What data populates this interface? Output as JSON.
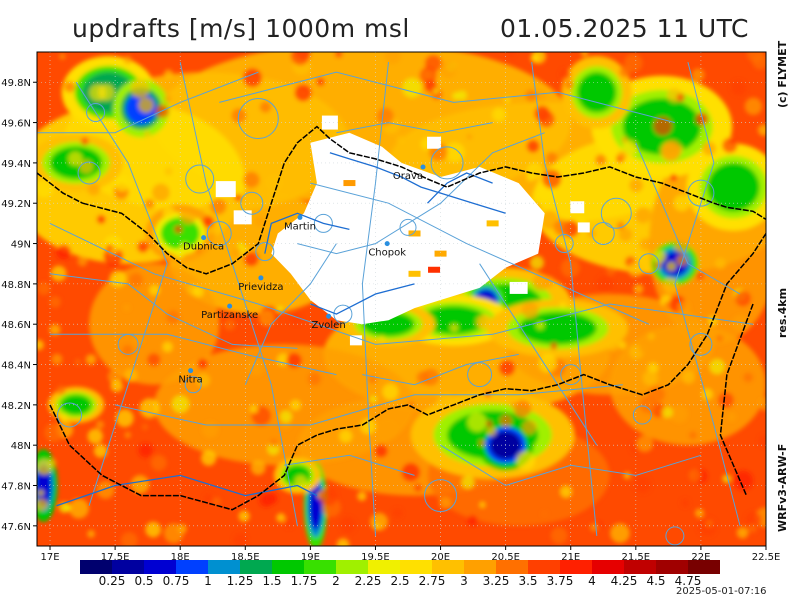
{
  "title": {
    "parameter": "updrafts [m/s] 1000m msl",
    "datetime": "01.05.2025 11 UTC"
  },
  "side_labels": {
    "copyright": "(c) FLYMET",
    "resolution": "res.4km",
    "model": "WRFv3-ARW-F"
  },
  "axes": {
    "longitude_ticks": [
      "17E",
      "17.5E",
      "18E",
      "18.5E",
      "19E",
      "19.5E",
      "20E",
      "20.5E",
      "21E",
      "21.5E",
      "22E",
      "22.5E"
    ],
    "latitude_ticks": [
      "49.8N",
      "49.6N",
      "49.4N",
      "49.2N",
      "49N",
      "48.8N",
      "48.6N",
      "48.4N",
      "48.2N",
      "48N",
      "47.8N",
      "47.6N"
    ],
    "lon_range": [
      16.9,
      22.5
    ],
    "lat_range": [
      47.5,
      49.95
    ]
  },
  "places": [
    {
      "name": "Orava",
      "lon": 19.75,
      "lat": 49.32
    },
    {
      "name": "Martin",
      "lon": 18.92,
      "lat": 49.07
    },
    {
      "name": "Dubnica",
      "lon": 18.18,
      "lat": 48.97
    },
    {
      "name": "Chopok",
      "lon": 19.59,
      "lat": 48.94
    },
    {
      "name": "Prievidza",
      "lon": 18.62,
      "lat": 48.77
    },
    {
      "name": "Partizanske",
      "lon": 18.38,
      "lat": 48.63
    },
    {
      "name": "Zvolen",
      "lon": 19.14,
      "lat": 48.58
    },
    {
      "name": "Nitra",
      "lon": 18.08,
      "lat": 48.31
    }
  ],
  "colorbar": {
    "labels": [
      "0.25",
      "0.5",
      "0.75",
      "1",
      "1.25",
      "1.5",
      "1.75",
      "2",
      "2.25",
      "2.5",
      "2.75",
      "3",
      "3.25",
      "3.5",
      "3.75",
      "4",
      "4.25",
      "4.5",
      "4.75"
    ],
    "colors": [
      "#00006e",
      "#0000a0",
      "#0000d2",
      "#0040ff",
      "#0090d0",
      "#00a850",
      "#00c800",
      "#38e000",
      "#a0f000",
      "#f0f000",
      "#ffe000",
      "#ffc000",
      "#ffa000",
      "#ff7000",
      "#ff4000",
      "#ff2000",
      "#e60000",
      "#c00000",
      "#a00000",
      "#780000"
    ]
  },
  "colors": {
    "airspace": "#5aa2d8",
    "border": "#000000",
    "river": "#1e6ed2"
  },
  "timestamp": "2025-05-01-07:16"
}
